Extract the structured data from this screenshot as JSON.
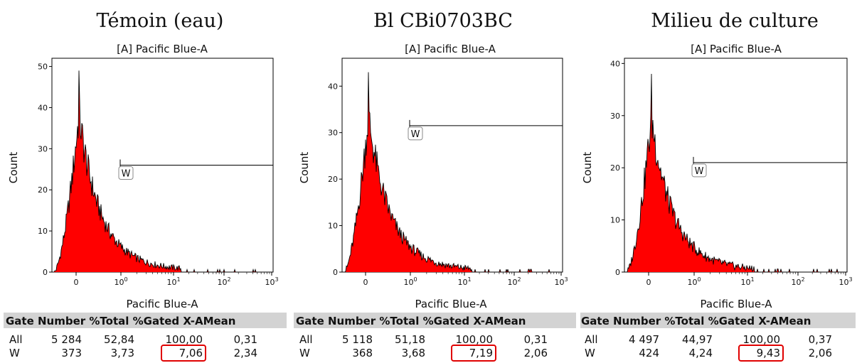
{
  "chart_data": [
    {
      "type": "histogram",
      "panel_title": "Témoin (eau)",
      "title": "[A] Pacific Blue-A",
      "xlabel": "Pacific Blue-A",
      "ylabel": "Count",
      "x_scale": "biexponential",
      "x_ticks": [
        "0",
        "10^0",
        "10^1",
        "10^2",
        "10^3"
      ],
      "y_ticks": [
        0,
        10,
        20,
        30,
        40,
        50
      ],
      "ylim": [
        0,
        52
      ],
      "fill_color": "#ff0000",
      "outline_color": "#000000",
      "peak_count": 49,
      "gate": {
        "name": "W",
        "count_level": 26
      },
      "table": {
        "headers": [
          "Gate",
          "Number",
          "%Total",
          "%Gated",
          "X-AMean"
        ],
        "rows": [
          [
            "All",
            "5 284",
            "52,84",
            "100,00",
            "0,31"
          ],
          [
            "W",
            "373",
            "3,73",
            "7,06",
            "2,34"
          ]
        ],
        "highlighted_cell": {
          "row": 1,
          "column": 3,
          "color": "#e00000"
        }
      }
    },
    {
      "type": "histogram",
      "panel_title": "Bl CBi0703BC",
      "title": "[A] Pacific Blue-A",
      "xlabel": "Pacific Blue-A",
      "ylabel": "Count",
      "x_scale": "biexponential",
      "x_ticks": [
        "0",
        "10^0",
        "10^1",
        "10^2",
        "10^3"
      ],
      "y_ticks": [
        0,
        10,
        20,
        30,
        40
      ],
      "ylim": [
        0,
        46
      ],
      "fill_color": "#ff0000",
      "outline_color": "#000000",
      "peak_count": 43,
      "gate": {
        "name": "W",
        "count_level": 31.5
      },
      "table": {
        "headers": [
          "Gate",
          "Number",
          "%Total",
          "%Gated",
          "X-AMean"
        ],
        "rows": [
          [
            "All",
            "5 118",
            "51,18",
            "100,00",
            "0,31"
          ],
          [
            "W",
            "368",
            "3,68",
            "7,19",
            "2,06"
          ]
        ],
        "highlighted_cell": {
          "row": 1,
          "column": 3,
          "color": "#e00000"
        }
      }
    },
    {
      "type": "histogram",
      "panel_title": "Milieu de culture",
      "title": "[A] Pacific Blue-A",
      "xlabel": "Pacific Blue-A",
      "ylabel": "Count",
      "x_scale": "biexponential",
      "x_ticks": [
        "0",
        "10^0",
        "10^1",
        "10^2",
        "10^3"
      ],
      "y_ticks": [
        0,
        10,
        20,
        30,
        40
      ],
      "ylim": [
        0,
        41
      ],
      "fill_color": "#ff0000",
      "outline_color": "#000000",
      "peak_count": 38,
      "gate": {
        "name": "W",
        "count_level": 21
      },
      "table": {
        "headers": [
          "Gate",
          "Number",
          "%Total",
          "%Gated",
          "X-AMean"
        ],
        "rows": [
          [
            "All",
            "4 497",
            "44,97",
            "100,00",
            "0,37"
          ],
          [
            "W",
            "424",
            "4,24",
            "9,43",
            "2,06"
          ]
        ],
        "highlighted_cell": {
          "row": 1,
          "column": 3,
          "color": "#e00000"
        }
      }
    }
  ]
}
